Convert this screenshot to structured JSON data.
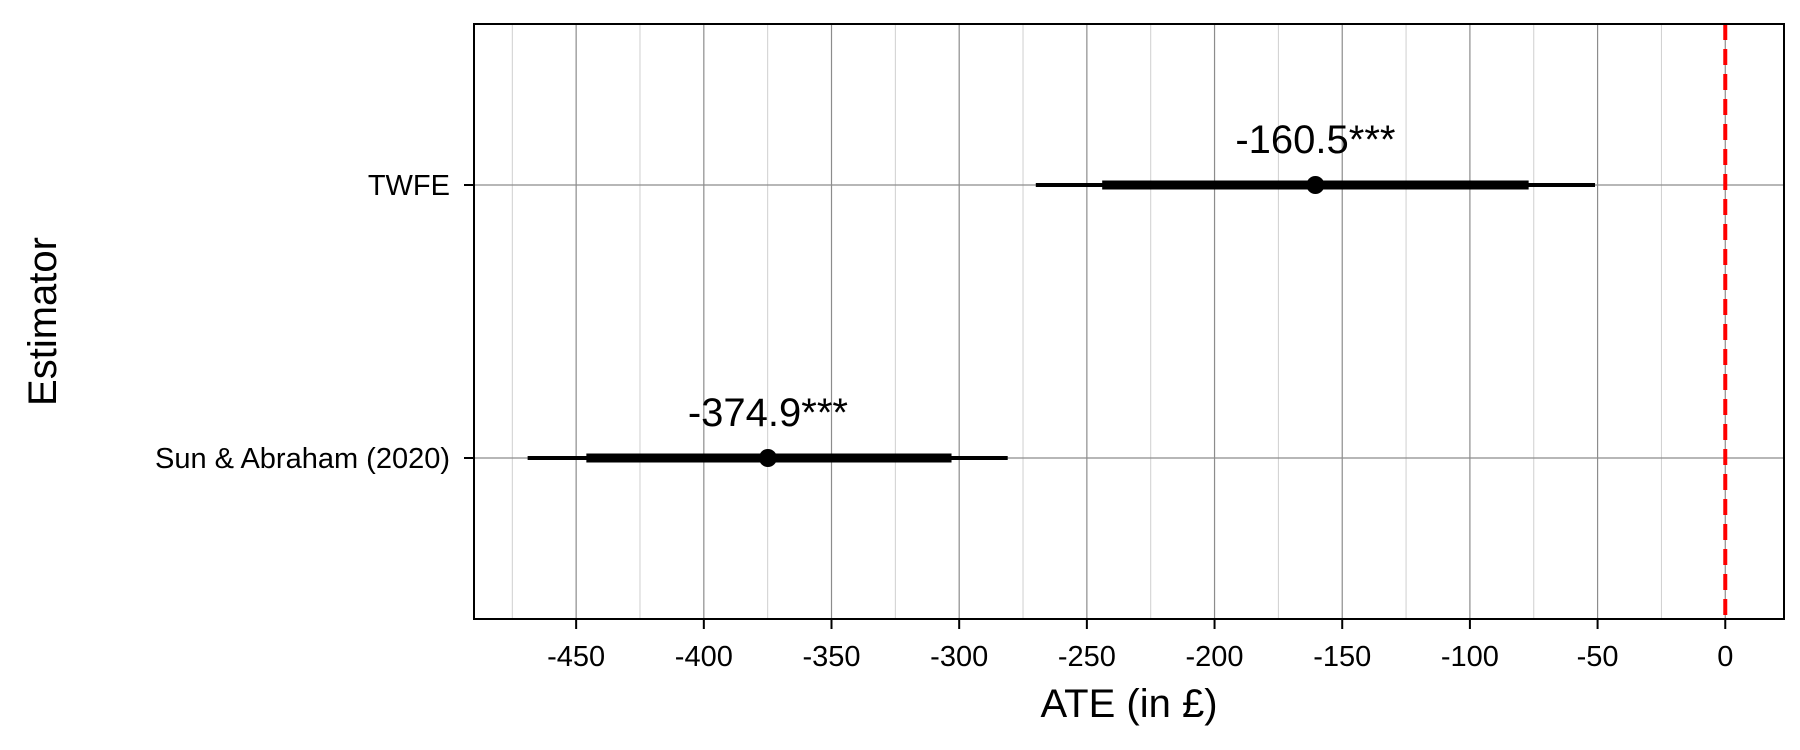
{
  "chart_data": {
    "type": "scatter",
    "title": "",
    "xlabel": "ATE (in £)",
    "ylabel": "Estimator",
    "xlim": [
      -490,
      23
    ],
    "x_ticks": [
      -450,
      -400,
      -350,
      -300,
      -250,
      -200,
      -150,
      -100,
      -50,
      0
    ],
    "x_tick_labels": [
      "-450",
      "-400",
      "-350",
      "-300",
      "-250",
      "-200",
      "-150",
      "-100",
      "-50",
      "0"
    ],
    "grid": true,
    "legend": "none",
    "reference_line": {
      "x": 0,
      "color": "#ff0000",
      "style": "dashed"
    },
    "categories": [
      "TWFE",
      "Sun & Abraham (2020)"
    ],
    "estimates": [
      {
        "category": "TWFE",
        "estimate": -160.5,
        "label": "-160.5***",
        "ci_inner": [
          -244,
          -77
        ],
        "ci_outer": [
          -270,
          -51
        ]
      },
      {
        "category": "Sun & Abraham (2020)",
        "estimate": -374.9,
        "label": "-374.9***",
        "ci_inner": [
          -446,
          -303
        ],
        "ci_outer": [
          -469,
          -281
        ]
      }
    ],
    "colors": {
      "marks": "#000000",
      "reference": "#ff0000",
      "major_grid": "#8c8c8c",
      "minor_grid": "#cfcfcf"
    }
  }
}
